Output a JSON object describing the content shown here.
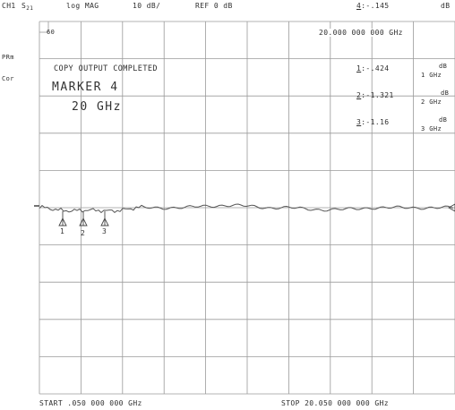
{
  "header": {
    "channel": "CH1",
    "param": "S",
    "param_sub": "21",
    "format": "log MAG",
    "scale": "10 dB/",
    "ref": "REF 0 dB",
    "active_marker_num": "4",
    "active_marker_value": ":-.145",
    "active_marker_unit": "dB"
  },
  "side": {
    "prm": "PRm",
    "cor": "Cor"
  },
  "grid_box_label": "60",
  "active_marker_freq": "20.000 000 000 GHz",
  "messages": {
    "copy": "COPY OUTPUT COMPLETED",
    "marker_title": "MARKER 4",
    "marker_freq": "20 GHz"
  },
  "marker_list": [
    {
      "num": "1",
      "value": ":-.424",
      "unit": "dB",
      "freq": "1 GHz"
    },
    {
      "num": "2",
      "value": ":-1.321",
      "unit": "dB",
      "freq": "2 GHz"
    },
    {
      "num": "3",
      "value": ":-1.16",
      "unit": "dB",
      "freq": "3 GHz"
    }
  ],
  "markers_on_trace": [
    "1",
    "2",
    "3"
  ],
  "footer": {
    "start": "START  .050 000 000 GHz",
    "stop": "STOP 20.050 000 000 GHz"
  },
  "trace": {
    "ref_level_db": 0,
    "db_per_div": 10,
    "color": "#555555",
    "grid_color": "#9a9a9a"
  }
}
